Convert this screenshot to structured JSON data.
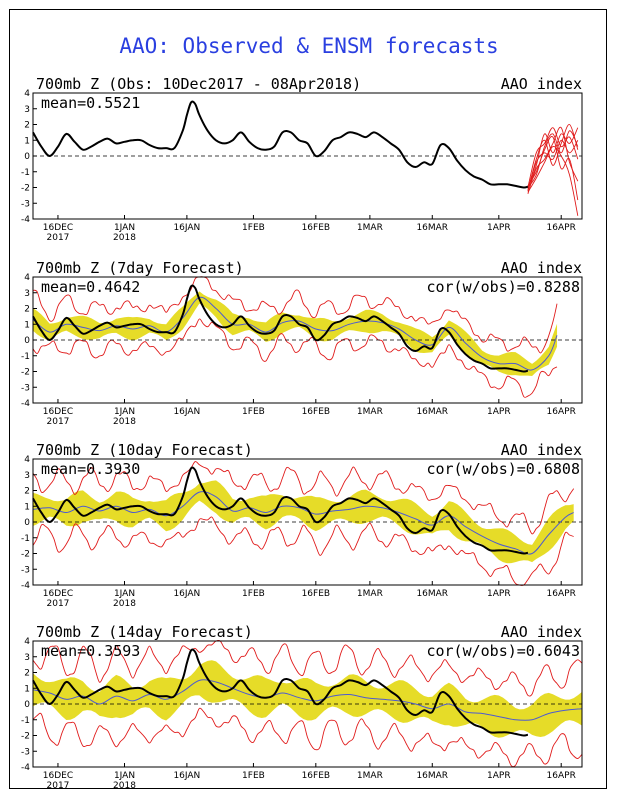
{
  "title": "AAO: Observed & ENSM forecasts",
  "colors": {
    "title": "#2a3fe0",
    "observed": "#000000",
    "ensemble_mean": "#4d5bd0",
    "spread": "#e6dc28",
    "range": "#e01b1b",
    "zero_line": "#000000"
  },
  "x_ticks": [
    {
      "day": 6,
      "label": "16DEC",
      "year": "2017"
    },
    {
      "day": 22,
      "label": "1JAN",
      "year": "2018"
    },
    {
      "day": 37,
      "label": "16JAN",
      "year": ""
    },
    {
      "day": 53,
      "label": "1FEB",
      "year": ""
    },
    {
      "day": 68,
      "label": "16FEB",
      "year": ""
    },
    {
      "day": 81,
      "label": "1MAR",
      "year": ""
    },
    {
      "day": 96,
      "label": "16MAR",
      "year": ""
    },
    {
      "day": 112,
      "label": "1APR",
      "year": ""
    },
    {
      "day": 127,
      "label": "16APR",
      "year": ""
    }
  ],
  "chart_data": [
    {
      "type": "line",
      "title": "700mb Z (Obs: 10Dec2017 - 08Apr2018)",
      "right_label": "AAO index",
      "mean_label": "mean=0.5521",
      "cor_label": "",
      "ylim": [
        -4,
        4
      ],
      "y_ticks": [
        "-4",
        "-3",
        "-2",
        "-1",
        "0",
        "1",
        "2",
        "3",
        "4"
      ],
      "xlim": [
        0,
        132
      ],
      "observed": {
        "days": [
          0,
          2,
          4,
          6,
          8,
          10,
          12,
          14,
          16,
          18,
          20,
          22,
          24,
          26,
          28,
          30,
          32,
          34,
          36,
          37,
          38,
          39,
          40,
          42,
          44,
          46,
          48,
          50,
          52,
          54,
          56,
          58,
          60,
          62,
          64,
          66,
          68,
          70,
          72,
          74,
          76,
          78,
          80,
          82,
          84,
          86,
          88,
          90,
          92,
          94,
          96,
          98,
          100,
          102,
          104,
          106,
          108,
          110,
          112,
          114,
          116,
          118,
          119
        ],
        "values": [
          1.5,
          0.6,
          0.0,
          0.6,
          1.4,
          0.9,
          0.4,
          0.6,
          0.9,
          1.1,
          0.8,
          0.9,
          1.0,
          1.0,
          0.7,
          0.5,
          0.5,
          0.5,
          1.6,
          2.6,
          3.4,
          3.3,
          2.6,
          1.6,
          1.0,
          0.8,
          1.0,
          1.5,
          0.9,
          0.5,
          0.4,
          0.6,
          1.5,
          1.5,
          1.0,
          0.8,
          0.0,
          0.3,
          1.0,
          1.2,
          1.5,
          1.4,
          1.2,
          1.5,
          1.2,
          0.8,
          0.4,
          -0.4,
          -0.7,
          -0.4,
          -0.5,
          0.7,
          0.5,
          -0.3,
          -0.9,
          -1.3,
          -1.5,
          -1.8,
          -1.8,
          -1.8,
          -1.9,
          -2.0,
          -1.95
        ]
      },
      "members": [
        {
          "days": [
            119,
            121,
            123,
            125,
            127,
            129,
            131
          ],
          "values": [
            -2.0,
            -1.2,
            0.6,
            1.4,
            0.2,
            1.6,
            0.6
          ]
        },
        {
          "days": [
            119,
            121,
            123,
            125,
            127,
            129,
            131
          ],
          "values": [
            -2.4,
            -0.8,
            -0.2,
            0.8,
            1.8,
            -0.4,
            -1.6
          ]
        },
        {
          "days": [
            119,
            121,
            123,
            125,
            127,
            129,
            131
          ],
          "values": [
            -2.2,
            -0.2,
            1.0,
            -0.6,
            0.8,
            2.0,
            0.4
          ]
        },
        {
          "days": [
            119,
            121,
            123,
            125,
            127,
            129,
            131
          ],
          "values": [
            -1.9,
            -1.0,
            0.4,
            1.2,
            -0.8,
            -0.2,
            -2.8
          ]
        },
        {
          "days": [
            119,
            121,
            123,
            125,
            127,
            129,
            131
          ],
          "values": [
            -2.1,
            -0.6,
            1.4,
            0.2,
            1.4,
            0.8,
            1.8
          ]
        },
        {
          "days": [
            119,
            121,
            123,
            125,
            127,
            129,
            131
          ],
          "values": [
            -2.3,
            -1.4,
            -0.4,
            0.6,
            0.0,
            -1.2,
            -3.8
          ]
        },
        {
          "days": [
            119,
            121,
            123,
            125,
            127,
            129,
            131
          ],
          "values": [
            -2.0,
            0.2,
            0.8,
            1.8,
            0.6,
            1.2,
            -0.2
          ]
        },
        {
          "days": [
            119,
            121,
            123,
            125,
            127,
            129,
            131
          ],
          "values": [
            -2.2,
            -0.4,
            0.2,
            -0.2,
            1.0,
            0.2,
            1.0
          ]
        }
      ]
    },
    {
      "type": "line",
      "title": "700mb Z (7day Forecast)",
      "right_label": "AAO index",
      "mean_label": "mean=0.4642",
      "cor_label": "cor(w/obs)=0.8288",
      "ylim": [
        -4,
        4
      ],
      "y_ticks": [
        "-4",
        "-3",
        "-2",
        "-1",
        "0",
        "1",
        "2",
        "3",
        "4"
      ],
      "xlim": [
        0,
        132
      ],
      "observed": {
        "days": [
          0,
          2,
          4,
          6,
          8,
          10,
          12,
          14,
          16,
          18,
          20,
          22,
          24,
          26,
          28,
          30,
          32,
          34,
          36,
          37,
          38,
          39,
          40,
          42,
          44,
          46,
          48,
          50,
          52,
          54,
          56,
          58,
          60,
          62,
          64,
          66,
          68,
          70,
          72,
          74,
          76,
          78,
          80,
          82,
          84,
          86,
          88,
          90,
          92,
          94,
          96,
          98,
          100,
          102,
          104,
          106,
          108,
          110,
          112,
          114,
          116,
          118,
          119
        ],
        "values": [
          1.5,
          0.6,
          0.0,
          0.6,
          1.4,
          0.9,
          0.4,
          0.6,
          0.9,
          1.1,
          0.8,
          0.9,
          1.0,
          1.0,
          0.7,
          0.5,
          0.5,
          0.5,
          1.6,
          2.6,
          3.4,
          3.3,
          2.6,
          1.6,
          1.0,
          0.8,
          1.0,
          1.5,
          0.9,
          0.5,
          0.4,
          0.6,
          1.5,
          1.5,
          1.0,
          0.8,
          0.0,
          0.3,
          1.0,
          1.2,
          1.5,
          1.4,
          1.2,
          1.5,
          1.2,
          0.8,
          0.4,
          -0.4,
          -0.7,
          -0.4,
          -0.5,
          0.7,
          0.5,
          -0.3,
          -0.9,
          -1.3,
          -1.5,
          -1.8,
          -1.8,
          -1.8,
          -1.9,
          -2.0,
          -1.95
        ]
      },
      "ensemble_mean": {
        "days": [
          0,
          4,
          8,
          12,
          16,
          20,
          24,
          28,
          32,
          36,
          40,
          44,
          48,
          52,
          56,
          60,
          64,
          68,
          72,
          76,
          80,
          84,
          88,
          92,
          96,
          100,
          104,
          108,
          112,
          116,
          120,
          124,
          126
        ],
        "values": [
          1.3,
          0.5,
          1.0,
          0.8,
          0.6,
          0.9,
          0.7,
          0.9,
          0.5,
          1.4,
          2.7,
          2.0,
          1.0,
          1.0,
          0.5,
          1.1,
          1.2,
          0.7,
          0.6,
          1.0,
          1.2,
          1.1,
          0.7,
          0.0,
          -0.3,
          0.8,
          -0.2,
          -1.1,
          -1.5,
          -1.5,
          -1.9,
          -1.0,
          0.3
        ]
      },
      "spread_half_width": 0.55,
      "range_half_width": 1.2
    },
    {
      "type": "line",
      "title": "700mb Z (10day Forecast)",
      "right_label": "AAO index",
      "mean_label": "mean=0.3930",
      "cor_label": "cor(w/obs)=0.6808",
      "ylim": [
        -4,
        4
      ],
      "y_ticks": [
        "-4",
        "-3",
        "-2",
        "-1",
        "0",
        "1",
        "2",
        "3",
        "4"
      ],
      "xlim": [
        0,
        132
      ],
      "observed": {
        "days": [
          0,
          2,
          4,
          6,
          8,
          10,
          12,
          14,
          16,
          18,
          20,
          22,
          24,
          26,
          28,
          30,
          32,
          34,
          36,
          37,
          38,
          39,
          40,
          42,
          44,
          46,
          48,
          50,
          52,
          54,
          56,
          58,
          60,
          62,
          64,
          66,
          68,
          70,
          72,
          74,
          76,
          78,
          80,
          82,
          84,
          86,
          88,
          90,
          92,
          94,
          96,
          98,
          100,
          102,
          104,
          106,
          108,
          110,
          112,
          114,
          116,
          118,
          119
        ],
        "values": [
          1.5,
          0.6,
          0.0,
          0.6,
          1.4,
          0.9,
          0.4,
          0.6,
          0.9,
          1.1,
          0.8,
          0.9,
          1.0,
          1.0,
          0.7,
          0.5,
          0.5,
          0.5,
          1.6,
          2.6,
          3.4,
          3.3,
          2.6,
          1.6,
          1.0,
          0.8,
          1.0,
          1.5,
          0.9,
          0.5,
          0.4,
          0.6,
          1.5,
          1.5,
          1.0,
          0.8,
          0.0,
          0.3,
          1.0,
          1.2,
          1.5,
          1.4,
          1.2,
          1.5,
          1.2,
          0.8,
          0.4,
          -0.4,
          -0.7,
          -0.4,
          -0.5,
          0.7,
          0.5,
          -0.3,
          -0.9,
          -1.3,
          -1.5,
          -1.8,
          -1.8,
          -1.8,
          -1.9,
          -2.0,
          -1.95
        ]
      },
      "ensemble_mean": {
        "days": [
          0,
          4,
          8,
          12,
          16,
          20,
          24,
          28,
          32,
          36,
          40,
          44,
          48,
          52,
          56,
          60,
          64,
          68,
          72,
          76,
          80,
          84,
          88,
          92,
          96,
          100,
          104,
          108,
          112,
          116,
          120,
          124,
          128,
          130
        ],
        "values": [
          0.8,
          0.9,
          0.6,
          1.0,
          0.7,
          1.0,
          0.6,
          0.8,
          0.4,
          1.0,
          1.9,
          1.6,
          0.7,
          0.9,
          0.6,
          1.0,
          0.9,
          0.5,
          0.7,
          0.8,
          1.0,
          0.9,
          0.6,
          0.2,
          -0.2,
          0.4,
          -0.3,
          -0.9,
          -1.4,
          -1.7,
          -2.0,
          -0.8,
          0.3,
          0.6
        ]
      },
      "spread_half_width": 0.8,
      "range_half_width": 1.7
    },
    {
      "type": "line",
      "title": "700mb Z (14day Forecast)",
      "right_label": "AAO index",
      "mean_label": "mean=0.3593",
      "cor_label": "cor(w/obs)=0.6043",
      "ylim": [
        -4,
        4
      ],
      "y_ticks": [
        "-4",
        "-3",
        "-2",
        "-1",
        "0",
        "1",
        "2",
        "3",
        "4"
      ],
      "xlim": [
        0,
        132
      ],
      "observed": {
        "days": [
          0,
          2,
          4,
          6,
          8,
          10,
          12,
          14,
          16,
          18,
          20,
          22,
          24,
          26,
          28,
          30,
          32,
          34,
          36,
          37,
          38,
          39,
          40,
          42,
          44,
          46,
          48,
          50,
          52,
          54,
          56,
          58,
          60,
          62,
          64,
          66,
          68,
          70,
          72,
          74,
          76,
          78,
          80,
          82,
          84,
          86,
          88,
          90,
          92,
          94,
          96,
          98,
          100,
          102,
          104,
          106,
          108,
          110,
          112,
          114,
          116,
          118,
          119
        ],
        "values": [
          1.5,
          0.6,
          0.0,
          0.6,
          1.4,
          0.9,
          0.4,
          0.6,
          0.9,
          1.1,
          0.8,
          0.9,
          1.0,
          1.0,
          0.7,
          0.5,
          0.5,
          0.5,
          1.6,
          2.6,
          3.4,
          3.3,
          2.6,
          1.6,
          1.0,
          0.8,
          1.0,
          1.5,
          0.9,
          0.5,
          0.4,
          0.6,
          1.5,
          1.5,
          1.0,
          0.8,
          0.0,
          0.3,
          1.0,
          1.2,
          1.5,
          1.4,
          1.2,
          1.5,
          1.2,
          0.8,
          0.4,
          -0.4,
          -0.7,
          -0.4,
          -0.5,
          0.7,
          0.5,
          -0.3,
          -0.9,
          -1.3,
          -1.5,
          -1.8,
          -1.8,
          -1.8,
          -1.9,
          -2.0,
          -1.95
        ]
      },
      "ensemble_mean": {
        "days": [
          0,
          4,
          8,
          12,
          16,
          20,
          24,
          28,
          32,
          36,
          40,
          44,
          48,
          52,
          56,
          60,
          64,
          68,
          72,
          76,
          80,
          84,
          88,
          92,
          96,
          100,
          104,
          108,
          112,
          116,
          120,
          124,
          128,
          132
        ],
        "values": [
          0.9,
          0.7,
          0.3,
          0.5,
          0.0,
          0.5,
          0.2,
          0.6,
          0.3,
          0.8,
          1.5,
          1.4,
          1.0,
          0.6,
          0.4,
          0.7,
          0.4,
          0.2,
          0.5,
          0.6,
          0.4,
          0.3,
          0.2,
          0.0,
          -0.3,
          0.0,
          -0.5,
          -0.6,
          -0.8,
          -1.0,
          -1.0,
          -0.6,
          -0.4,
          -0.3
        ]
      },
      "spread_half_width": 1.0,
      "range_half_width": 2.2
    }
  ]
}
